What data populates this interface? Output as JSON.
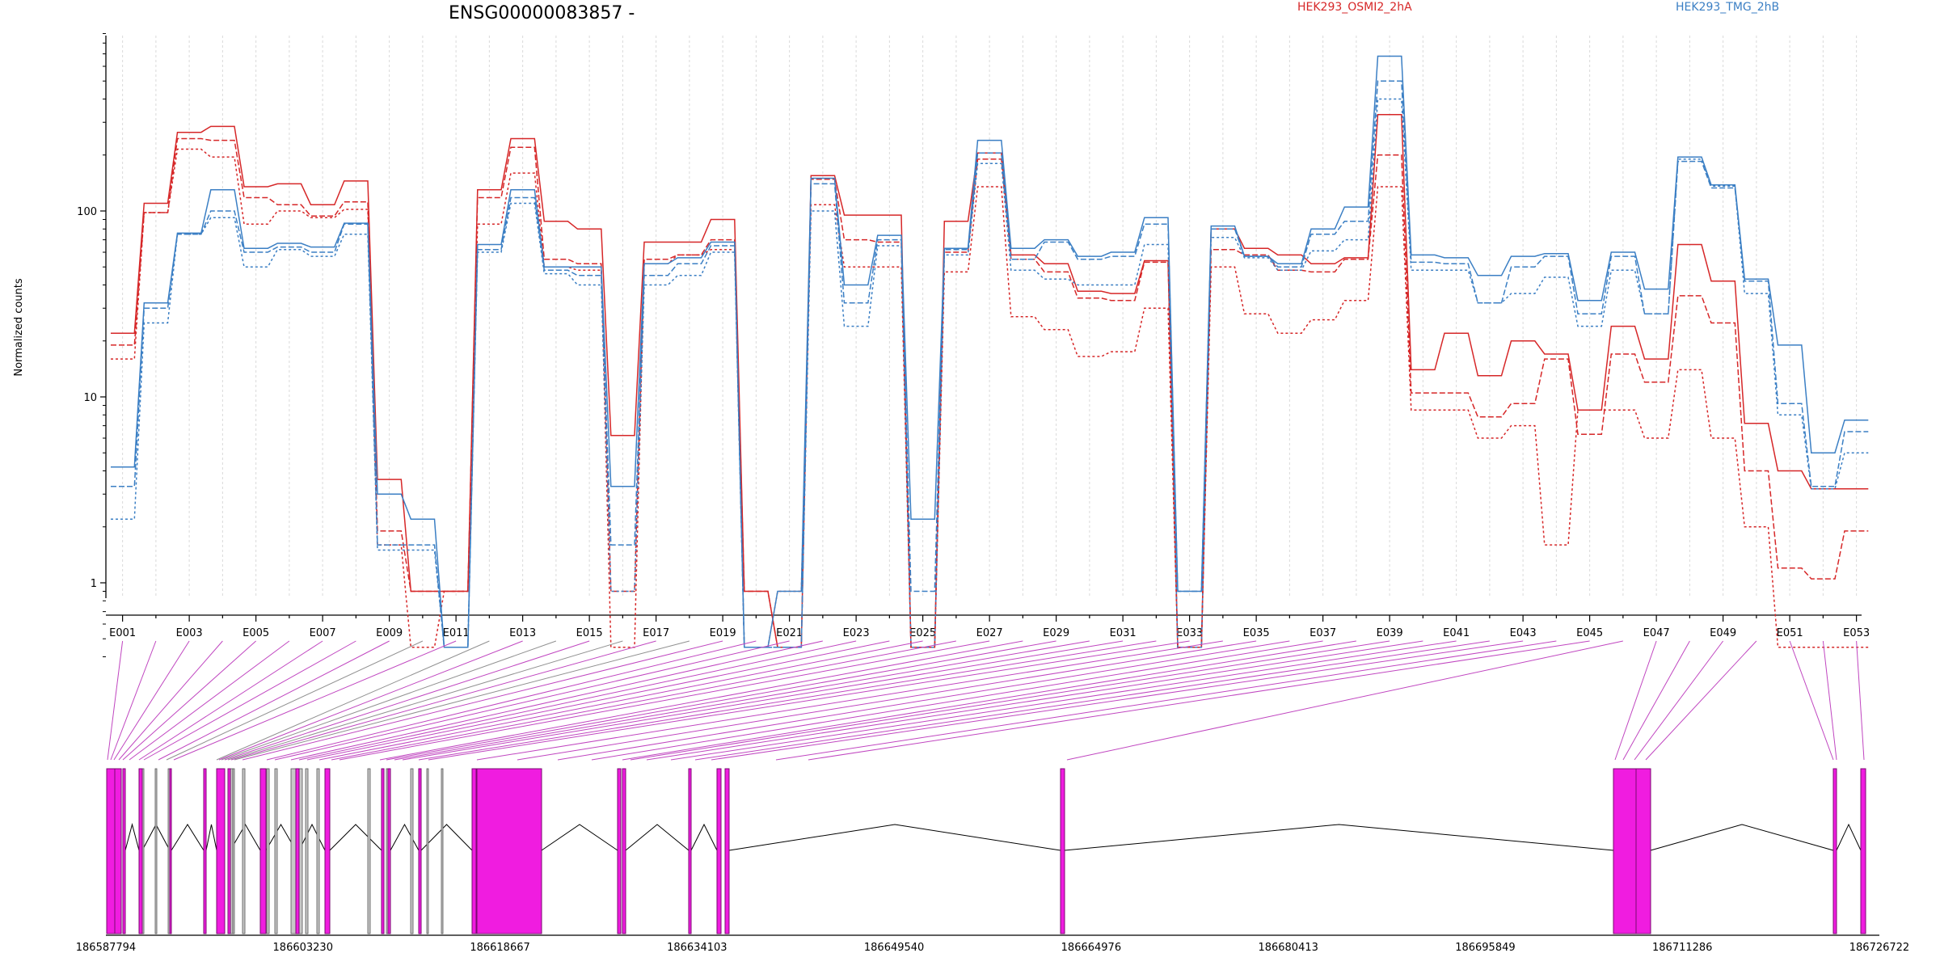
{
  "chart_data": {
    "type": "line",
    "title": "ENSG00000083857 -",
    "ylabel": "Normalized counts",
    "yscale": "log",
    "yticks": [
      "1",
      "10",
      "100"
    ],
    "ylim": [
      0.4,
      900
    ],
    "legend": {
      "placement": "top-right"
    },
    "categories": [
      "E001",
      "E002",
      "E003",
      "E004",
      "E005",
      "E006",
      "E007",
      "E008",
      "E009",
      "E010",
      "E011",
      "E012",
      "E013",
      "E014",
      "E015",
      "E016",
      "E017",
      "E018",
      "E019",
      "E020",
      "E021",
      "E022",
      "E023",
      "E024",
      "E025",
      "E026",
      "E027",
      "E028",
      "E029",
      "E030",
      "E031",
      "E032",
      "E033",
      "E034",
      "E035",
      "E036",
      "E037",
      "E038",
      "E039",
      "E040",
      "E041",
      "E042",
      "E043",
      "E044",
      "E045",
      "E046",
      "E047",
      "E048",
      "E049",
      "E050",
      "E051",
      "E052",
      "E053"
    ],
    "x_tick_labels": [
      "E001",
      "E003",
      "E005",
      "E007",
      "E009",
      "E011",
      "E013",
      "E015",
      "E017",
      "E019",
      "E021",
      "E023",
      "E025",
      "E027",
      "E029",
      "E031",
      "E033",
      "E035",
      "E037",
      "E039",
      "E041",
      "E043",
      "E045",
      "E047",
      "E049",
      "E051",
      "E053"
    ],
    "series": [
      {
        "name": "HEK293_OSMI2_2hA",
        "color": "#d62728",
        "style": "solid",
        "values": [
          22,
          110,
          265,
          285,
          135,
          140,
          108,
          145,
          3.6,
          0.9,
          0.9,
          130,
          245,
          88,
          80,
          6.2,
          68,
          68,
          90,
          0.9,
          0.45,
          155,
          95,
          95,
          0.45,
          88,
          205,
          58,
          52,
          37,
          36,
          54,
          0.45,
          80,
          63,
          58,
          52,
          56,
          330,
          14,
          22,
          13,
          20,
          17,
          8.5,
          24,
          16,
          66,
          42,
          7.2,
          4.0,
          3.2,
          3.2
        ]
      },
      {
        "name": "",
        "color": "#d62728",
        "style": "dash",
        "values": [
          19,
          98,
          245,
          240,
          118,
          108,
          94,
          112,
          1.9,
          0.9,
          0.9,
          118,
          220,
          55,
          52,
          0.9,
          55,
          58,
          70,
          0.9,
          0.45,
          148,
          70,
          68,
          0.45,
          60,
          190,
          55,
          47,
          34,
          33,
          53,
          0.45,
          62,
          58,
          48,
          47,
          55,
          200,
          10.5,
          10.5,
          7.8,
          9.2,
          16,
          6.3,
          17,
          12,
          35,
          25,
          4.0,
          1.2,
          1.05,
          1.9
        ]
      },
      {
        "name": "",
        "color": "#d62728",
        "style": "dash2",
        "values": [
          16,
          98,
          215,
          195,
          85,
          100,
          92,
          102,
          1.6,
          0.45,
          0.9,
          85,
          160,
          50,
          48,
          0.45,
          52,
          58,
          62,
          0.45,
          0.9,
          108,
          50,
          50,
          0.45,
          47,
          135,
          27,
          23,
          16.5,
          17.5,
          30,
          0.45,
          50,
          28,
          22,
          26,
          33,
          135,
          8.5,
          8.5,
          6.0,
          7.0,
          1.6,
          8.5,
          8.5,
          6.0,
          14,
          6.0,
          2.0,
          0.45,
          0.45,
          0.45
        ]
      },
      {
        "name": "HEK293_TMG_2hB",
        "color": "#3b7fc4",
        "style": "solid",
        "values": [
          4.2,
          32,
          76,
          130,
          63,
          67,
          64,
          86,
          3.0,
          2.2,
          0.45,
          66,
          130,
          50,
          50,
          3.3,
          52,
          56,
          68,
          0.45,
          0.9,
          150,
          40,
          74,
          2.2,
          63,
          240,
          63,
          70,
          57,
          60,
          92,
          0.9,
          83,
          57,
          52,
          80,
          105,
          680,
          58,
          56,
          45,
          57,
          59,
          33,
          60,
          38,
          195,
          138,
          43,
          19,
          5.0,
          7.5
        ]
      },
      {
        "name": "",
        "color": "#3b7fc4",
        "style": "dash",
        "values": [
          3.3,
          30,
          75,
          100,
          60,
          64,
          60,
          85,
          1.6,
          1.6,
          0.45,
          62,
          118,
          48,
          45,
          1.6,
          45,
          52,
          65,
          0.45,
          0.45,
          140,
          32,
          70,
          0.9,
          62,
          205,
          55,
          68,
          55,
          57,
          85,
          0.9,
          80,
          57,
          50,
          75,
          88,
          500,
          53,
          52,
          32,
          50,
          57,
          28,
          57,
          28,
          185,
          133,
          42,
          9.2,
          3.3,
          6.5
        ]
      },
      {
        "name": "",
        "color": "#3b7fc4",
        "style": "dash2",
        "values": [
          2.2,
          25,
          75,
          92,
          50,
          62,
          57,
          75,
          1.5,
          1.5,
          0.45,
          60,
          110,
          46,
          40,
          0.9,
          40,
          45,
          60,
          0.45,
          0.45,
          100,
          24,
          65,
          0.45,
          58,
          180,
          48,
          43,
          40,
          40,
          66,
          0.45,
          72,
          56,
          48,
          61,
          70,
          400,
          48,
          48,
          32,
          36,
          44,
          24,
          48,
          28,
          190,
          136,
          36,
          8.0,
          3.2,
          5.0
        ]
      }
    ]
  },
  "gene_model": {
    "coordinate_labels": [
      "186587794",
      "186603230",
      "186618667",
      "186634103",
      "186649540",
      "186664976",
      "186680413",
      "186695849",
      "186711286",
      "186726722"
    ],
    "exon_color": "#f01ce0",
    "intron_color": "#000000",
    "connector_colors": {
      "highlight": "#c046c0",
      "neutral": "#909090"
    }
  }
}
